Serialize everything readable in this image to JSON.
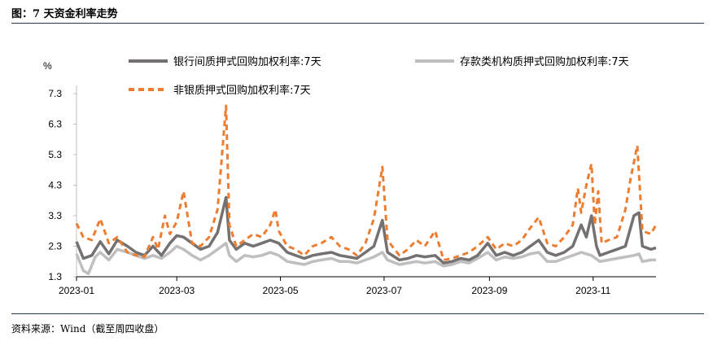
{
  "header": {
    "title": "图：7 天资金利率走势"
  },
  "footer": {
    "source": "资料来源：Wind（截至周四收盘）"
  },
  "chart_data": {
    "type": "line",
    "ylabel": "%",
    "ylim": [
      1.3,
      7.3
    ],
    "yticks": [
      "7.3",
      "6.3",
      "5.3",
      "4.3",
      "3.3",
      "2.3",
      "1.3"
    ],
    "xlim": [
      "2023-01-01",
      "2023-12-08"
    ],
    "xticks": [
      "2023-01",
      "2023-03",
      "2023-05",
      "2023-07",
      "2023-09",
      "2023-11"
    ],
    "legend_position": "top",
    "series": [
      {
        "name": "银行间质押式回购加权利率:7天",
        "color": "#767171",
        "dash": "solid",
        "points": [
          [
            "2023-01-01",
            2.45
          ],
          [
            "2023-01-05",
            1.9
          ],
          [
            "2023-01-10",
            2.0
          ],
          [
            "2023-01-15",
            2.45
          ],
          [
            "2023-01-20",
            2.05
          ],
          [
            "2023-01-25",
            2.5
          ],
          [
            "2023-01-31",
            2.3
          ],
          [
            "2023-02-05",
            2.1
          ],
          [
            "2023-02-10",
            2.0
          ],
          [
            "2023-02-15",
            2.3
          ],
          [
            "2023-02-20",
            2.0
          ],
          [
            "2023-02-25",
            2.4
          ],
          [
            "2023-03-01",
            2.65
          ],
          [
            "2023-03-05",
            2.6
          ],
          [
            "2023-03-10",
            2.4
          ],
          [
            "2023-03-15",
            2.2
          ],
          [
            "2023-03-20",
            2.3
          ],
          [
            "2023-03-25",
            2.75
          ],
          [
            "2023-03-30",
            3.9
          ],
          [
            "2023-04-01",
            2.5
          ],
          [
            "2023-04-05",
            2.2
          ],
          [
            "2023-04-10",
            2.4
          ],
          [
            "2023-04-15",
            2.3
          ],
          [
            "2023-04-20",
            2.4
          ],
          [
            "2023-04-25",
            2.5
          ],
          [
            "2023-04-30",
            2.4
          ],
          [
            "2023-05-05",
            2.1
          ],
          [
            "2023-05-10",
            2.0
          ],
          [
            "2023-05-15",
            1.9
          ],
          [
            "2023-05-20",
            2.0
          ],
          [
            "2023-05-25",
            2.05
          ],
          [
            "2023-05-31",
            2.1
          ],
          [
            "2023-06-05",
            2.0
          ],
          [
            "2023-06-10",
            1.95
          ],
          [
            "2023-06-15",
            1.9
          ],
          [
            "2023-06-20",
            2.1
          ],
          [
            "2023-06-25",
            2.3
          ],
          [
            "2023-06-30",
            3.15
          ],
          [
            "2023-07-03",
            2.1
          ],
          [
            "2023-07-10",
            1.85
          ],
          [
            "2023-07-15",
            1.9
          ],
          [
            "2023-07-20",
            2.0
          ],
          [
            "2023-07-25",
            1.95
          ],
          [
            "2023-07-31",
            2.0
          ],
          [
            "2023-08-05",
            1.75
          ],
          [
            "2023-08-10",
            1.8
          ],
          [
            "2023-08-15",
            1.9
          ],
          [
            "2023-08-20",
            1.85
          ],
          [
            "2023-08-25",
            2.0
          ],
          [
            "2023-08-31",
            2.4
          ],
          [
            "2023-09-05",
            2.0
          ],
          [
            "2023-09-10",
            2.1
          ],
          [
            "2023-09-15",
            2.0
          ],
          [
            "2023-09-20",
            2.1
          ],
          [
            "2023-09-25",
            2.3
          ],
          [
            "2023-09-30",
            2.5
          ],
          [
            "2023-10-05",
            2.1
          ],
          [
            "2023-10-10",
            2.0
          ],
          [
            "2023-10-15",
            2.1
          ],
          [
            "2023-10-20",
            2.3
          ],
          [
            "2023-10-25",
            3.0
          ],
          [
            "2023-10-28",
            2.6
          ],
          [
            "2023-10-31",
            3.3
          ],
          [
            "2023-11-03",
            2.3
          ],
          [
            "2023-11-05",
            2.0
          ],
          [
            "2023-11-10",
            2.1
          ],
          [
            "2023-11-15",
            2.2
          ],
          [
            "2023-11-20",
            2.3
          ],
          [
            "2023-11-25",
            3.3
          ],
          [
            "2023-11-28",
            3.4
          ],
          [
            "2023-11-30",
            2.3
          ],
          [
            "2023-12-05",
            2.2
          ],
          [
            "2023-12-08",
            2.25
          ]
        ]
      },
      {
        "name": "存款类机构质押式回购加权利率:7天",
        "color": "#bfbfbf",
        "dash": "solid",
        "points": [
          [
            "2023-01-01",
            2.05
          ],
          [
            "2023-01-05",
            1.5
          ],
          [
            "2023-01-08",
            1.4
          ],
          [
            "2023-01-12",
            1.95
          ],
          [
            "2023-01-15",
            2.1
          ],
          [
            "2023-01-20",
            1.85
          ],
          [
            "2023-01-25",
            2.2
          ],
          [
            "2023-01-31",
            2.1
          ],
          [
            "2023-02-05",
            2.0
          ],
          [
            "2023-02-10",
            1.9
          ],
          [
            "2023-02-15",
            2.0
          ],
          [
            "2023-02-20",
            1.9
          ],
          [
            "2023-02-25",
            2.1
          ],
          [
            "2023-03-01",
            2.3
          ],
          [
            "2023-03-05",
            2.2
          ],
          [
            "2023-03-10",
            2.0
          ],
          [
            "2023-03-15",
            1.85
          ],
          [
            "2023-03-20",
            2.0
          ],
          [
            "2023-03-25",
            2.2
          ],
          [
            "2023-03-30",
            2.4
          ],
          [
            "2023-04-01",
            2.0
          ],
          [
            "2023-04-05",
            1.8
          ],
          [
            "2023-04-10",
            2.0
          ],
          [
            "2023-04-15",
            1.95
          ],
          [
            "2023-04-20",
            2.0
          ],
          [
            "2023-04-25",
            2.1
          ],
          [
            "2023-04-30",
            2.0
          ],
          [
            "2023-05-05",
            1.8
          ],
          [
            "2023-05-10",
            1.75
          ],
          [
            "2023-05-15",
            1.7
          ],
          [
            "2023-05-20",
            1.8
          ],
          [
            "2023-05-25",
            1.85
          ],
          [
            "2023-05-31",
            1.9
          ],
          [
            "2023-06-05",
            1.8
          ],
          [
            "2023-06-10",
            1.8
          ],
          [
            "2023-06-15",
            1.75
          ],
          [
            "2023-06-20",
            1.85
          ],
          [
            "2023-06-25",
            1.95
          ],
          [
            "2023-06-30",
            2.1
          ],
          [
            "2023-07-03",
            1.85
          ],
          [
            "2023-07-10",
            1.7
          ],
          [
            "2023-07-15",
            1.75
          ],
          [
            "2023-07-20",
            1.8
          ],
          [
            "2023-07-25",
            1.75
          ],
          [
            "2023-07-31",
            1.8
          ],
          [
            "2023-08-05",
            1.65
          ],
          [
            "2023-08-10",
            1.7
          ],
          [
            "2023-08-15",
            1.8
          ],
          [
            "2023-08-20",
            1.75
          ],
          [
            "2023-08-25",
            1.9
          ],
          [
            "2023-08-31",
            2.1
          ],
          [
            "2023-09-05",
            1.85
          ],
          [
            "2023-09-10",
            1.95
          ],
          [
            "2023-09-15",
            1.9
          ],
          [
            "2023-09-20",
            1.95
          ],
          [
            "2023-09-25",
            2.05
          ],
          [
            "2023-09-30",
            2.1
          ],
          [
            "2023-10-05",
            1.8
          ],
          [
            "2023-10-10",
            1.8
          ],
          [
            "2023-10-15",
            1.9
          ],
          [
            "2023-10-20",
            2.0
          ],
          [
            "2023-10-25",
            2.1
          ],
          [
            "2023-10-31",
            2.0
          ],
          [
            "2023-11-05",
            1.8
          ],
          [
            "2023-11-10",
            1.85
          ],
          [
            "2023-11-15",
            1.9
          ],
          [
            "2023-11-20",
            1.95
          ],
          [
            "2023-11-25",
            2.0
          ],
          [
            "2023-11-28",
            2.05
          ],
          [
            "2023-11-30",
            1.8
          ],
          [
            "2023-12-05",
            1.85
          ],
          [
            "2023-12-08",
            1.85
          ]
        ]
      },
      {
        "name": "非银质押式回购加权利率:7天",
        "color": "#ed7d31",
        "dash": "dashed",
        "points": [
          [
            "2023-01-01",
            3.05
          ],
          [
            "2023-01-05",
            2.6
          ],
          [
            "2023-01-10",
            2.5
          ],
          [
            "2023-01-15",
            3.2
          ],
          [
            "2023-01-20",
            2.4
          ],
          [
            "2023-01-25",
            2.6
          ],
          [
            "2023-01-31",
            2.1
          ],
          [
            "2023-02-05",
            2.0
          ],
          [
            "2023-02-10",
            1.95
          ],
          [
            "2023-02-15",
            2.6
          ],
          [
            "2023-02-18",
            2.2
          ],
          [
            "2023-02-22",
            3.3
          ],
          [
            "2023-02-25",
            2.7
          ],
          [
            "2023-03-01",
            3.1
          ],
          [
            "2023-03-05",
            4.1
          ],
          [
            "2023-03-10",
            2.4
          ],
          [
            "2023-03-15",
            2.3
          ],
          [
            "2023-03-20",
            2.6
          ],
          [
            "2023-03-25",
            3.5
          ],
          [
            "2023-03-30",
            6.9
          ],
          [
            "2023-04-01",
            3.0
          ],
          [
            "2023-04-05",
            2.3
          ],
          [
            "2023-04-10",
            2.5
          ],
          [
            "2023-04-15",
            2.7
          ],
          [
            "2023-04-20",
            2.6
          ],
          [
            "2023-04-25",
            3.0
          ],
          [
            "2023-04-28",
            3.5
          ],
          [
            "2023-04-30",
            2.8
          ],
          [
            "2023-05-05",
            2.3
          ],
          [
            "2023-05-10",
            2.2
          ],
          [
            "2023-05-15",
            2.0
          ],
          [
            "2023-05-20",
            2.3
          ],
          [
            "2023-05-25",
            2.4
          ],
          [
            "2023-05-31",
            2.6
          ],
          [
            "2023-06-05",
            2.3
          ],
          [
            "2023-06-10",
            2.2
          ],
          [
            "2023-06-15",
            2.0
          ],
          [
            "2023-06-20",
            2.4
          ],
          [
            "2023-06-25",
            3.2
          ],
          [
            "2023-06-30",
            4.9
          ],
          [
            "2023-07-03",
            2.5
          ],
          [
            "2023-07-10",
            2.0
          ],
          [
            "2023-07-15",
            2.2
          ],
          [
            "2023-07-20",
            2.5
          ],
          [
            "2023-07-25",
            2.3
          ],
          [
            "2023-07-31",
            2.8
          ],
          [
            "2023-08-05",
            1.85
          ],
          [
            "2023-08-10",
            1.9
          ],
          [
            "2023-08-15",
            2.0
          ],
          [
            "2023-08-20",
            2.1
          ],
          [
            "2023-08-25",
            2.3
          ],
          [
            "2023-08-31",
            2.6
          ],
          [
            "2023-09-05",
            2.2
          ],
          [
            "2023-09-10",
            2.4
          ],
          [
            "2023-09-15",
            2.3
          ],
          [
            "2023-09-20",
            2.5
          ],
          [
            "2023-09-25",
            2.9
          ],
          [
            "2023-09-30",
            3.25
          ],
          [
            "2023-10-05",
            2.4
          ],
          [
            "2023-10-10",
            2.3
          ],
          [
            "2023-10-15",
            2.6
          ],
          [
            "2023-10-20",
            3.0
          ],
          [
            "2023-10-23",
            4.2
          ],
          [
            "2023-10-25",
            3.4
          ],
          [
            "2023-10-28",
            4.3
          ],
          [
            "2023-10-31",
            5.0
          ],
          [
            "2023-11-02",
            3.0
          ],
          [
            "2023-11-04",
            4.1
          ],
          [
            "2023-11-06",
            2.4
          ],
          [
            "2023-11-10",
            2.5
          ],
          [
            "2023-11-15",
            2.6
          ],
          [
            "2023-11-20",
            3.5
          ],
          [
            "2023-11-23",
            4.5
          ],
          [
            "2023-11-27",
            5.6
          ],
          [
            "2023-11-30",
            2.8
          ],
          [
            "2023-12-05",
            2.7
          ],
          [
            "2023-12-08",
            3.0
          ]
        ]
      }
    ]
  }
}
